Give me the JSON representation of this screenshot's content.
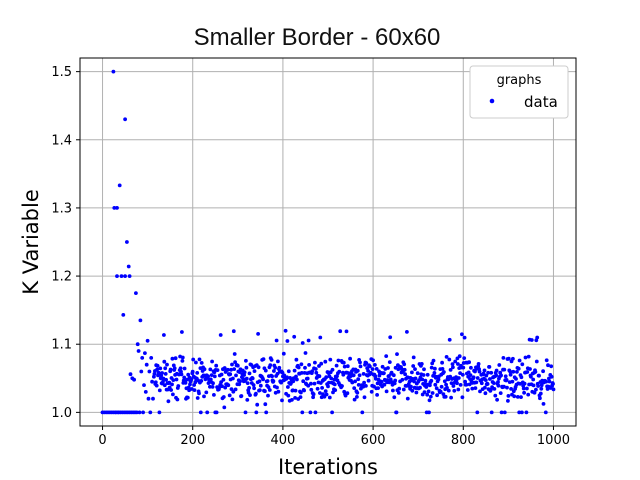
{
  "chart_data": {
    "type": "scatter",
    "title": "Smaller Border - 60x60",
    "xlabel": "Iterations",
    "ylabel": "K Variable",
    "xlim": [
      -50,
      1050
    ],
    "ylim": [
      0.98,
      1.52
    ],
    "xticks": [
      0,
      200,
      400,
      600,
      800,
      1000
    ],
    "yticks": [
      1.0,
      1.1,
      1.2,
      1.3,
      1.4,
      1.5
    ],
    "xtick_labels": [
      "0",
      "200",
      "400",
      "600",
      "800",
      "1000"
    ],
    "ytick_labels": [
      "1.0",
      "1.1",
      "1.2",
      "1.3",
      "1.4",
      "1.5"
    ],
    "grid": true,
    "legend": {
      "title": "graphs",
      "placement": "top-right"
    },
    "series": [
      {
        "name": "data",
        "color": "#0000ff",
        "points": [
          [
            0,
            1.0
          ],
          [
            4,
            1.0
          ],
          [
            8,
            1.0
          ],
          [
            12,
            1.0
          ],
          [
            16,
            1.0
          ],
          [
            20,
            1.0
          ],
          [
            24,
            1.5
          ],
          [
            24,
            1.0
          ],
          [
            26,
            1.3
          ],
          [
            28,
            1.0
          ],
          [
            30,
            1.0
          ],
          [
            32,
            1.2
          ],
          [
            32,
            1.3
          ],
          [
            34,
            1.0
          ],
          [
            36,
            1.0
          ],
          [
            38,
            1.333
          ],
          [
            40,
            1.0
          ],
          [
            42,
            1.2
          ],
          [
            44,
            1.0
          ],
          [
            46,
            1.143
          ],
          [
            48,
            1.0
          ],
          [
            50,
            1.2
          ],
          [
            50,
            1.43
          ],
          [
            52,
            1.0
          ],
          [
            54,
            1.25
          ],
          [
            56,
            1.0
          ],
          [
            58,
            1.214
          ],
          [
            60,
            1.0
          ],
          [
            60,
            1.2
          ],
          [
            62,
            1.056
          ],
          [
            64,
            1.0
          ],
          [
            66,
            1.05
          ],
          [
            68,
            1.0
          ],
          [
            70,
            1.048
          ],
          [
            72,
            1.0
          ],
          [
            74,
            1.175
          ],
          [
            76,
            1.0
          ],
          [
            78,
            1.1
          ],
          [
            80,
            1.09
          ],
          [
            82,
            1.0
          ],
          [
            84,
            1.135
          ],
          [
            86,
            1.06
          ],
          [
            88,
            1.08
          ],
          [
            90,
            1.0
          ],
          [
            92,
            1.04
          ],
          [
            94,
            1.087
          ],
          [
            96,
            1.03
          ],
          [
            98,
            1.07
          ],
          [
            100,
            1.105
          ],
          [
            102,
            1.02
          ],
          [
            104,
            1.06
          ],
          [
            106,
            1.0
          ],
          [
            108,
            1.08
          ],
          [
            110,
            1.045
          ],
          [
            112,
            1.02
          ]
        ],
        "noise_region": {
          "x_start": 114,
          "x_end": 1000,
          "y_min": 1.0,
          "y_max": 1.12,
          "typical": 1.045
        }
      }
    ]
  }
}
